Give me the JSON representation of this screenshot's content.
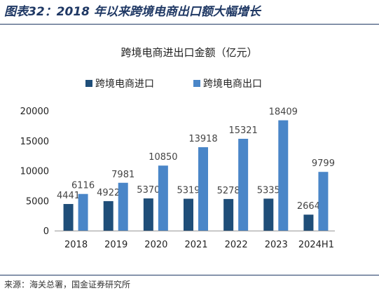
{
  "figure_title": "图表32：2018 年以来跨境电商出口额大幅增长",
  "source": "来源：海关总署，国金证券研究所",
  "colors": {
    "import": "#1f4e79",
    "export": "#4a86c8",
    "title": "#1f3864"
  },
  "chart_data": {
    "type": "bar",
    "title": "跨境电商进出口金额（亿元）",
    "categories": [
      "2018",
      "2019",
      "2020",
      "2021",
      "2022",
      "2023",
      "2024H1"
    ],
    "series": [
      {
        "name": "跨境电商进口",
        "values": [
          4441,
          4922,
          5370,
          5319,
          5278,
          5335,
          2664
        ]
      },
      {
        "name": "跨境电商出口",
        "values": [
          6116,
          7981,
          10850,
          13918,
          15321,
          18409,
          9799
        ]
      }
    ],
    "yticks": [
      "0",
      "5000",
      "10000",
      "15000",
      "20000"
    ],
    "ylim": [
      0,
      20000
    ],
    "xlabel": "",
    "ylabel": "",
    "grid": false,
    "legend_position": "top"
  }
}
